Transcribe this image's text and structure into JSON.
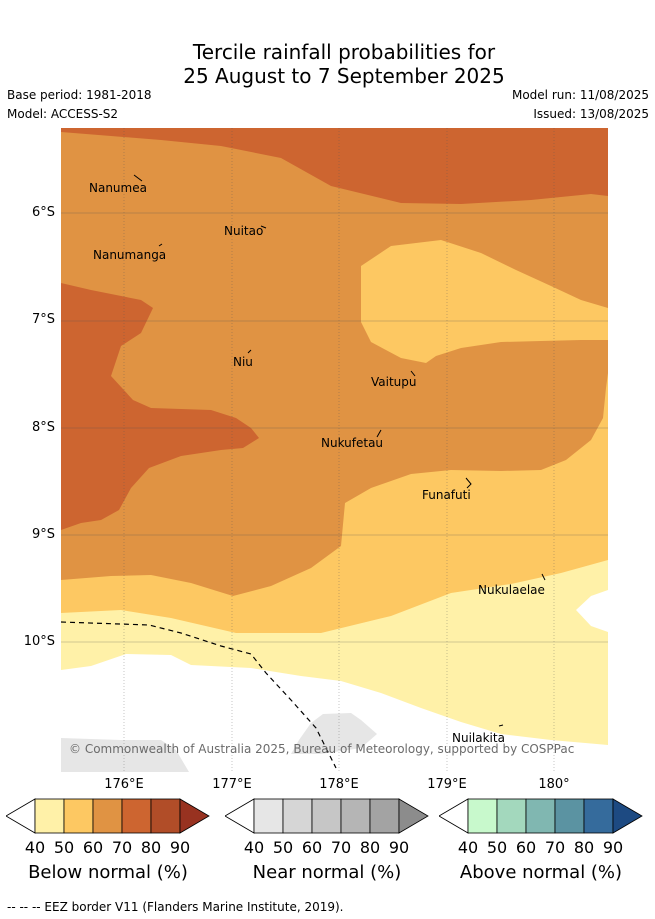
{
  "title_line1": "Tercile rainfall probabilities for",
  "title_line2": "25 August to 7 September 2025",
  "base_period": "Base period: 1981-2018",
  "model": "Model: ACCESS-S2",
  "model_run": "Model run: 11/08/2025",
  "issued": "Issued: 13/08/2025",
  "lat_labels": [
    "6°S",
    "7°S",
    "8°S",
    "9°S",
    "10°S"
  ],
  "lon_labels": [
    "176°E",
    "177°E",
    "178°E",
    "179°E",
    "180°"
  ],
  "places": {
    "nanumea": "Nanumea",
    "nuitao": "Nuitao",
    "nanumanga": "Nanumanga",
    "niu": "Niu",
    "vaitupu": "Vaitupu",
    "nukufetau": "Nukufetau",
    "funafuti": "Funafuti",
    "nukulaelae": "Nukulaelae",
    "nuilakita": "Nuilakita"
  },
  "credit": "© Commonwealth of Australia 2025, Bureau of Meteorology, supported by COSPPac",
  "legend": {
    "ticks": [
      "40",
      "50",
      "60",
      "70",
      "80",
      "90"
    ],
    "below_label": "Below normal (%)",
    "near_label": "Near normal (%)",
    "above_label": "Above normal (%)",
    "below_colors": [
      "#fff1a8",
      "#fdc862",
      "#e09343",
      "#cd6530",
      "#b14d28",
      "#983220"
    ],
    "near_colors": [
      "#e6e6e6",
      "#d6d6d6",
      "#c6c6c6",
      "#b5b5b5",
      "#a3a3a3",
      "#8c8c8c"
    ],
    "above_colors": [
      "#c8f9cc",
      "#a3d8bd",
      "#80b7b1",
      "#5b93a2",
      "#356b9c",
      "#1d4a82"
    ]
  },
  "footer": "-- -- -- EEZ border V11 (Flanders Marine Institute, 2019)."
}
